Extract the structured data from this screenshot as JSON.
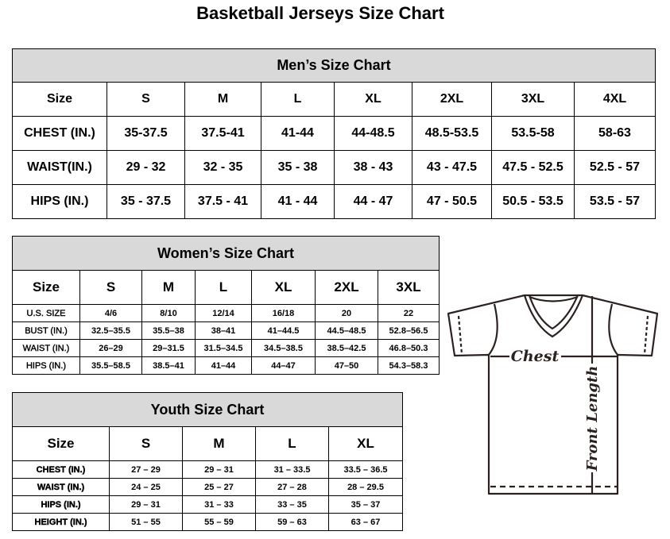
{
  "title": "Basketball Jerseys Size Chart",
  "men": {
    "caption": "Men’s Size Chart",
    "header": [
      "Size",
      "S",
      "M",
      "L",
      "XL",
      "2XL",
      "3XL",
      "4XL"
    ],
    "rows": [
      [
        "CHEST (IN.)",
        "35-37.5",
        "37.5-41",
        "41-44",
        "44-48.5",
        "48.5-53.5",
        "53.5-58",
        "58-63"
      ],
      [
        "WAIST(IN.)",
        "29 - 32",
        "32 - 35",
        "35 - 38",
        "38 - 43",
        "43 - 47.5",
        "47.5 - 52.5",
        "52.5 - 57"
      ],
      [
        "HIPS (IN.)",
        "35 - 37.5",
        "37.5 - 41",
        "41 - 44",
        "44 - 47",
        "47 - 50.5",
        "50.5 - 53.5",
        "53.5 - 57"
      ]
    ]
  },
  "women": {
    "caption": "Women’s Size Chart",
    "header": [
      "Size",
      "S",
      "M",
      "L",
      "XL",
      "2XL",
      "3XL"
    ],
    "rows": [
      [
        "U.S.  SIZE",
        "4/6",
        "8/10",
        "12/14",
        "16/18",
        "20",
        "22"
      ],
      [
        "BUST  (IN.)",
        "32.5–35.5",
        "35.5–38",
        "38–41",
        "41–44.5",
        "44.5–48.5",
        "52.8–56.5"
      ],
      [
        "WAIST  (IN.)",
        "26–29",
        "29–31.5",
        "31.5–34.5",
        "34.5–38.5",
        "38.5–42.5",
        "46.8–50.3"
      ],
      [
        "HIPS  (IN.)",
        "35.5–58.5",
        "38.5–41",
        "41–44",
        "44–47",
        "47–50",
        "54.3–58.3"
      ]
    ]
  },
  "youth": {
    "caption": "Youth Size Chart",
    "header": [
      "Size",
      "S",
      "M",
      "L",
      "XL"
    ],
    "rows": [
      [
        "CHEST  (IN.)",
        "27  –  29",
        "29  –  31",
        "31  –  33.5",
        "33.5  –  36.5"
      ],
      [
        "WAIST  (IN.)",
        "24  –  25",
        "25  –  27",
        "27  –  28",
        "28  –  29.5"
      ],
      [
        "HIPS  (IN.)",
        "29  –  31",
        "31  –  33",
        "33  –  35",
        "35  –  37"
      ],
      [
        "HEIGHT  (IN.)",
        "51  –  55",
        "55  –  59",
        "59  –  63",
        "63  –  67"
      ]
    ]
  },
  "diagram": {
    "chest_label": "Chest",
    "length_label": "Front Length"
  },
  "colors": {
    "caption_bg": "#d9d9d9",
    "line": "#2b2220"
  }
}
